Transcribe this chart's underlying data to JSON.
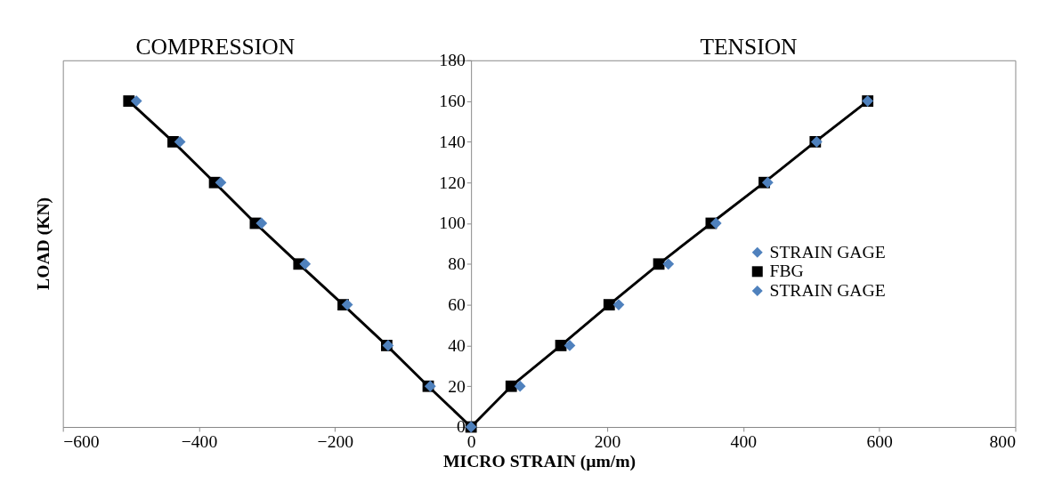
{
  "chart_data": {
    "type": "line",
    "xlabel": "MICRO STRAIN (µm/m)",
    "ylabel": "LOAD (KN)",
    "annotations": [
      "COMPRESSION",
      "TENSION"
    ],
    "xlim": [
      -600,
      800
    ],
    "xticks": [
      -600,
      -400,
      -200,
      0,
      200,
      400,
      600,
      800
    ],
    "ylim": [
      0,
      180
    ],
    "yticks": [
      0,
      20,
      40,
      60,
      80,
      100,
      120,
      140,
      160,
      180
    ],
    "grid": false,
    "legend": "right",
    "series": [
      {
        "name": "STRAIN GAGE",
        "type": "scatter",
        "marker": "diamond",
        "color": "#4f81bd",
        "x": [
          0,
          -60,
          -122,
          -182,
          -244,
          -308,
          -368,
          -428,
          -492
        ],
        "values": [
          0,
          20,
          40,
          60,
          80,
          100,
          120,
          140,
          160
        ]
      },
      {
        "name": "FBG",
        "marker": "square",
        "color": "#000000",
        "x": [
          -503,
          -438,
          -377,
          -317,
          -253,
          -188,
          -124,
          -63,
          0,
          59,
          132,
          203,
          276,
          353,
          431,
          506,
          583
        ],
        "values": [
          160,
          140,
          120,
          100,
          80,
          60,
          40,
          20,
          0,
          20,
          40,
          60,
          80,
          100,
          120,
          140,
          160
        ]
      },
      {
        "name": "STRAIN GAGE",
        "type": "scatter",
        "marker": "diamond",
        "color": "#4f81bd",
        "x": [
          72,
          145,
          217,
          290,
          360,
          436,
          508,
          583
        ],
        "values": [
          20,
          40,
          60,
          80,
          100,
          120,
          140,
          160
        ]
      }
    ]
  }
}
